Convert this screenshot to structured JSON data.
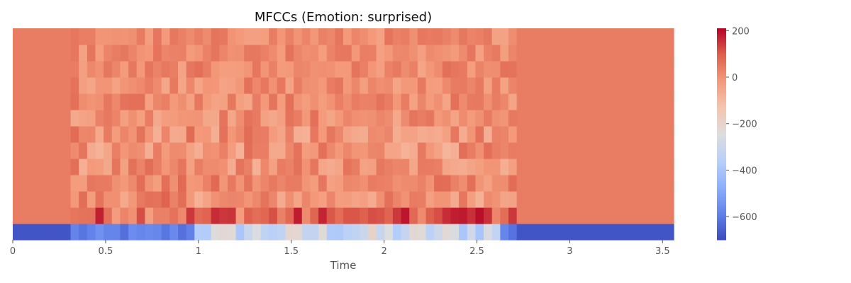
{
  "chart_data": {
    "type": "heatmap",
    "title": "MFCCs (Emotion: surprised)",
    "xlabel": "Time",
    "ylabel": "",
    "xlim": [
      0,
      3.56
    ],
    "xticks": [
      {
        "value": 0,
        "label": "0"
      },
      {
        "value": 0.5,
        "label": "0.5"
      },
      {
        "value": 1,
        "label": "1"
      },
      {
        "value": 1.5,
        "label": "1.5"
      },
      {
        "value": 2,
        "label": "2"
      },
      {
        "value": 2.5,
        "label": "2.5"
      },
      {
        "value": 3,
        "label": "3"
      },
      {
        "value": 3.5,
        "label": "3.5"
      }
    ],
    "n_mfcc": 13,
    "n_frames": 80,
    "row_order": "coefficient 0 at bottom",
    "voiced_segments": [
      {
        "start": 0.33,
        "end": 2.72,
        "intensity": 1.0,
        "note": "speech region with stronger variation"
      }
    ],
    "coefficient_profiles": [
      {
        "coef": 0,
        "silence_value": -680,
        "speech_range": [
          -580,
          -180
        ],
        "note": "very low, blue band"
      },
      {
        "coef": 1,
        "silence_value": 40,
        "speech_range": [
          -30,
          190
        ],
        "note": "peaks near t=2.45 (dark red)"
      },
      {
        "coef": 2,
        "silence_value": 40,
        "speech_range": [
          -60,
          90
        ]
      },
      {
        "coef": 3,
        "silence_value": 40,
        "speech_range": [
          -40,
          80
        ]
      },
      {
        "coef": 4,
        "silence_value": 40,
        "speech_range": [
          -80,
          70
        ]
      },
      {
        "coef": 5,
        "silence_value": 40,
        "speech_range": [
          -90,
          70
        ]
      },
      {
        "coef": 6,
        "silence_value": 40,
        "speech_range": [
          -80,
          75
        ]
      },
      {
        "coef": 7,
        "silence_value": 40,
        "speech_range": [
          -60,
          70
        ]
      },
      {
        "coef": 8,
        "silence_value": 40,
        "speech_range": [
          -50,
          70
        ]
      },
      {
        "coef": 9,
        "silence_value": 40,
        "speech_range": [
          -50,
          65
        ]
      },
      {
        "coef": 10,
        "silence_value": 40,
        "speech_range": [
          -45,
          65
        ]
      },
      {
        "coef": 11,
        "silence_value": 40,
        "speech_range": [
          -40,
          60
        ]
      },
      {
        "coef": 12,
        "silence_value": 40,
        "speech_range": [
          -40,
          60
        ]
      }
    ],
    "colorbar": {
      "colormap": "coolwarm",
      "vmin": -700,
      "vmax": 210,
      "ticks": [
        {
          "value": 200,
          "label": "200"
        },
        {
          "value": 0,
          "label": "0"
        },
        {
          "value": -200,
          "label": "−200"
        },
        {
          "value": -400,
          "label": "−400"
        },
        {
          "value": -600,
          "label": "−600"
        }
      ]
    }
  }
}
